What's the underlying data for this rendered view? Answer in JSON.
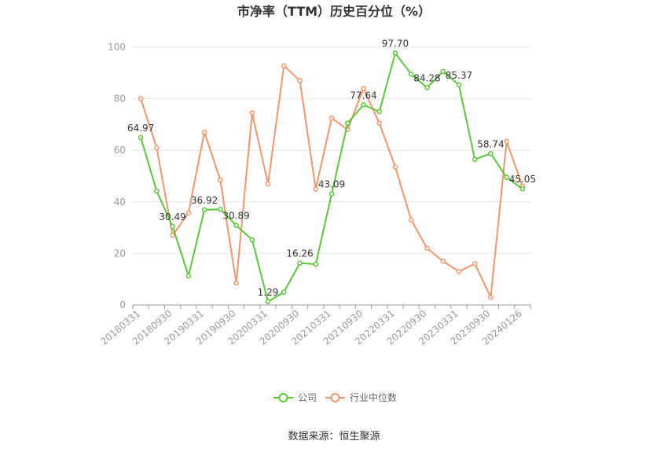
{
  "chart_data": {
    "type": "line",
    "title": "市净率（TTM）历史百分位（%）",
    "source": "数据来源：恒生聚源",
    "ylim": [
      0,
      100
    ],
    "yticks": [
      0,
      20,
      40,
      60,
      80,
      100
    ],
    "grid": true,
    "legend_position": "bottom",
    "x": [
      "20180331",
      "20180630",
      "20180930",
      "20181231",
      "20190331",
      "20190630",
      "20190930",
      "20191231",
      "20200331",
      "20200630",
      "20200930",
      "20201231",
      "20210331",
      "20210630",
      "20210930",
      "20211231",
      "20220331",
      "20220630",
      "20220930",
      "20221231",
      "20230331",
      "20230630",
      "20230930",
      "20231231",
      "20240126"
    ],
    "xtick_labels": [
      "20180331",
      "20180930",
      "20190331",
      "20190930",
      "20200331",
      "20200930",
      "20210331",
      "20210930",
      "20220331",
      "20220930",
      "20230331",
      "20230930",
      "20240126"
    ],
    "series": [
      {
        "name": "公司",
        "color": "#5cc639",
        "values": [
          64.97,
          44.2,
          30.49,
          11.3,
          36.92,
          37.1,
          30.89,
          25.3,
          1.29,
          5.0,
          16.26,
          15.8,
          43.09,
          70.5,
          77.64,
          75.0,
          97.7,
          89.5,
          84.28,
          90.6,
          85.37,
          56.5,
          58.74,
          49.5,
          45.05
        ],
        "labels": {
          "0": "64.97",
          "2": "30.49",
          "4": "36.92",
          "6": "30.89",
          "8": "1.29",
          "10": "16.26",
          "12": "43.09",
          "14": "77.64",
          "16": "97.70",
          "18": "84.28",
          "20": "85.37",
          "22": "58.74",
          "24": "45.05"
        }
      },
      {
        "name": "行业中位数",
        "color": "#f5946b",
        "values": [
          80.0,
          61.0,
          27.0,
          35.8,
          67.0,
          48.5,
          8.5,
          74.5,
          47.0,
          92.8,
          87.0,
          45.0,
          72.5,
          68.0,
          84.0,
          70.5,
          53.5,
          33.0,
          22.0,
          17.0,
          13.0,
          16.0,
          3.0,
          63.5,
          46.0
        ],
        "labels": {}
      }
    ]
  }
}
